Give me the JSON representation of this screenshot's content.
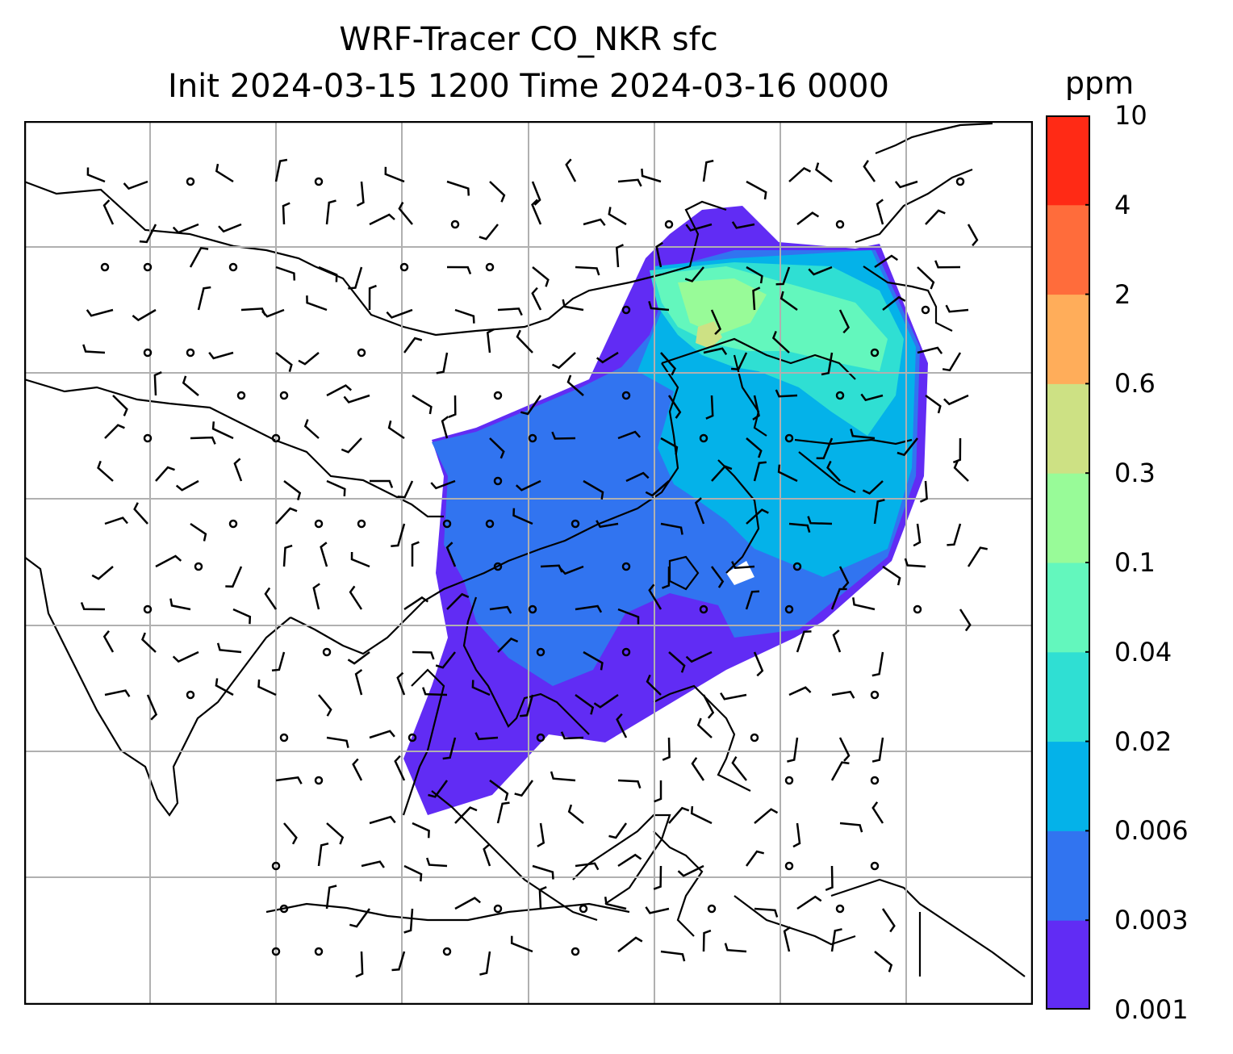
{
  "title": {
    "line1": "WRF-Tracer CO_NKR sfc",
    "line2": "Init 2024-03-15 1200 Time 2024-03-16 0000"
  },
  "colorbar": {
    "unit": "ppm",
    "ticks": [
      "10",
      "4",
      "2",
      "0.6",
      "0.3",
      "0.1",
      "0.04",
      "0.02",
      "0.006",
      "0.003",
      "0.001"
    ],
    "levels_low_to_high": [
      {
        "from": "0.001",
        "to": "0.003",
        "color": "#612cf4"
      },
      {
        "from": "0.003",
        "to": "0.006",
        "color": "#3174f0"
      },
      {
        "from": "0.006",
        "to": "0.02",
        "color": "#04b2e9"
      },
      {
        "from": "0.02",
        "to": "0.04",
        "color": "#2fdfd3"
      },
      {
        "from": "0.04",
        "to": "0.1",
        "color": "#63f7bd"
      },
      {
        "from": "0.1",
        "to": "0.3",
        "color": "#98fb98"
      },
      {
        "from": "0.3",
        "to": "0.6",
        "color": "#cde184"
      },
      {
        "from": "0.6",
        "to": "2",
        "color": "#ffad5a"
      },
      {
        "from": "2",
        "to": "4",
        "color": "#ff6c3b"
      },
      {
        "from": "4",
        "to": "10",
        "color": "#ff2a15"
      }
    ]
  },
  "map": {
    "projection": "lat-lon grid with coastlines",
    "gridlines": true,
    "gridline_color": "#b0b0b0",
    "overlay": "wind barbs",
    "plume_color_scale": "rainbow"
  }
}
